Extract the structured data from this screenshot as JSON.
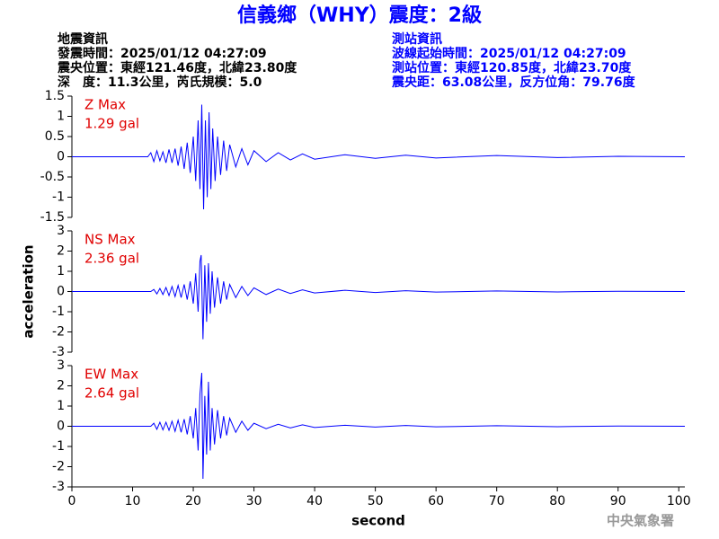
{
  "header": {
    "title": "信義鄉（WHY）震度：2級",
    "event": [
      "地震資訊",
      "發震時間：2025/01/12 04:27:09",
      "震央位置：東經121.46度，北緯23.80度",
      "深　度：11.3公里，芮氏規模：5.0"
    ],
    "station": [
      "測站資訊",
      "波線起始時間：2025/01/12 04:27:09",
      "測站位置：東經120.85度，北緯23.70度",
      "震央距：63.08公里，反方位角：79.76度"
    ],
    "footer": "中央氣象署"
  },
  "chart_data": [
    {
      "type": "line",
      "annotations": [
        "Z Max",
        "1.29 gal"
      ],
      "xlim": [
        0,
        101
      ],
      "ylim": [
        -1.5,
        1.5
      ],
      "yticks": [
        -1.5,
        -1,
        -0.5,
        0,
        0.5,
        1,
        1.5
      ],
      "series": [
        {
          "color": "#0000ff",
          "x": [
            0,
            12.5,
            13,
            13.5,
            14,
            14.5,
            15,
            15.5,
            16,
            16.5,
            17,
            17.5,
            18,
            18.5,
            19,
            19.5,
            20,
            20.4,
            20.8,
            21.1,
            21.4,
            21.7,
            22,
            22.3,
            22.6,
            22.9,
            23.2,
            23.6,
            24,
            24.5,
            25,
            25.5,
            26,
            27,
            28,
            29,
            30,
            32,
            34,
            36,
            38,
            40,
            45,
            50,
            55,
            60,
            70,
            80,
            90,
            101
          ],
          "values": [
            0,
            0,
            0.1,
            -0.12,
            0.15,
            -0.1,
            0.12,
            -0.15,
            0.18,
            -0.15,
            0.2,
            -0.22,
            0.25,
            -0.3,
            0.35,
            -0.4,
            0.5,
            -0.6,
            0.9,
            -0.8,
            1.29,
            -1.3,
            0.9,
            -1,
            1.1,
            -0.8,
            0.7,
            -0.6,
            0.5,
            -0.45,
            0.4,
            -0.35,
            0.3,
            -0.25,
            0.2,
            -0.2,
            0.15,
            -0.12,
            0.1,
            -0.08,
            0.07,
            -0.06,
            0.05,
            -0.04,
            0.04,
            -0.03,
            0.03,
            -0.02,
            0.01,
            0
          ]
        }
      ]
    },
    {
      "type": "line",
      "annotations": [
        "NS Max",
        "2.36 gal"
      ],
      "y_label": "acceleration",
      "xlim": [
        0,
        101
      ],
      "ylim": [
        -3,
        3
      ],
      "yticks": [
        -3,
        -2,
        -1,
        0,
        1,
        2,
        3
      ],
      "series": [
        {
          "color": "#0000ff",
          "x": [
            0,
            13,
            13.5,
            14,
            14.5,
            15,
            15.5,
            16,
            16.5,
            17,
            17.5,
            18,
            18.5,
            19,
            19.5,
            20,
            20.4,
            20.8,
            21.1,
            21.3,
            21.6,
            21.9,
            22.2,
            22.5,
            22.8,
            23.1,
            23.5,
            24,
            24.5,
            25,
            25.5,
            26,
            27,
            28,
            29,
            30,
            32,
            34,
            36,
            38,
            40,
            45,
            50,
            55,
            60,
            70,
            80,
            90,
            101
          ],
          "values": [
            0,
            0,
            0.1,
            -0.12,
            0.15,
            -0.15,
            0.2,
            -0.2,
            0.25,
            -0.25,
            0.3,
            -0.3,
            0.35,
            -0.4,
            0.5,
            -0.6,
            0.9,
            -1,
            1.5,
            1.8,
            -2.36,
            1.3,
            -1.5,
            1.4,
            -1.1,
            1,
            -0.8,
            0.7,
            -0.6,
            0.5,
            -0.4,
            0.35,
            -0.3,
            0.25,
            -0.2,
            0.18,
            -0.15,
            0.12,
            -0.1,
            0.08,
            -0.07,
            0.06,
            -0.05,
            0.04,
            -0.03,
            0.03,
            -0.02,
            0.01,
            0
          ]
        }
      ]
    },
    {
      "type": "line",
      "annotations": [
        "EW Max",
        "2.64 gal"
      ],
      "x_label": "second",
      "xlim": [
        0,
        101
      ],
      "ylim": [
        -3,
        3
      ],
      "yticks": [
        -3,
        -2,
        -1,
        0,
        1,
        2,
        3
      ],
      "xticks": [
        0,
        10,
        20,
        30,
        40,
        50,
        60,
        70,
        80,
        90,
        100
      ],
      "series": [
        {
          "color": "#0000ff",
          "x": [
            0,
            13,
            13.5,
            14,
            14.5,
            15,
            15.5,
            16,
            16.5,
            17,
            17.5,
            18,
            18.5,
            19,
            19.5,
            20,
            20.4,
            20.8,
            21.1,
            21.4,
            21.6,
            21.9,
            22.2,
            22.5,
            22.8,
            23.1,
            23.5,
            24,
            24.5,
            25,
            25.5,
            26,
            27,
            28,
            29,
            30,
            32,
            34,
            36,
            38,
            40,
            45,
            50,
            55,
            60,
            70,
            80,
            90,
            101
          ],
          "values": [
            0,
            0,
            0.15,
            -0.15,
            0.2,
            -0.18,
            0.2,
            -0.2,
            0.25,
            -0.25,
            0.3,
            -0.3,
            0.35,
            -0.4,
            0.5,
            -0.6,
            0.9,
            -1.2,
            1.6,
            2.64,
            -2.6,
            1.5,
            -1.4,
            2.2,
            -1.2,
            0.9,
            -0.9,
            0.8,
            -0.6,
            0.5,
            -0.45,
            0.4,
            -0.3,
            0.25,
            -0.2,
            0.15,
            -0.12,
            0.1,
            -0.08,
            0.07,
            -0.06,
            0.05,
            -0.04,
            0.04,
            -0.03,
            0.03,
            -0.02,
            0.01,
            0
          ]
        }
      ]
    }
  ]
}
